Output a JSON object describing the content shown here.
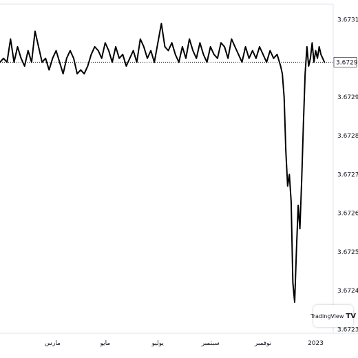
{
  "brand": {
    "name": "TradingView",
    "logo": "TV"
  },
  "chart_data": {
    "type": "line",
    "title": "",
    "xlabel": "",
    "ylabel": "",
    "ylim": [
      3.67229,
      3.67314
    ],
    "y_ticks": [
      "3.67310",
      "3.67290",
      "3.67280",
      "3.67270",
      "3.67260",
      "3.67250",
      "3.67240",
      "3.67230"
    ],
    "y_tick_values": [
      3.6731,
      3.6729,
      3.6728,
      3.6727,
      3.6726,
      3.6725,
      3.6724,
      3.6723
    ],
    "last_price": {
      "label": "3.67299",
      "value": 3.67299
    },
    "x_ticks": [
      "مارس",
      "مايو",
      "يوليو",
      "سبتمبر",
      "نوفمبر",
      "2023"
    ],
    "x_tick_values": [
      0.2,
      0.35,
      0.5,
      0.65,
      0.8,
      0.95
    ],
    "x_range": [
      0.05,
      1.0
    ],
    "grid": false,
    "series": [
      {
        "color": "#000000",
        "x": [
          0.05,
          0.06,
          0.07,
          0.08,
          0.09,
          0.1,
          0.11,
          0.12,
          0.13,
          0.14,
          0.15,
          0.16,
          0.17,
          0.18,
          0.19,
          0.2,
          0.21,
          0.22,
          0.23,
          0.24,
          0.25,
          0.26,
          0.27,
          0.28,
          0.29,
          0.3,
          0.31,
          0.32,
          0.33,
          0.34,
          0.35,
          0.36,
          0.37,
          0.38,
          0.39,
          0.4,
          0.41,
          0.42,
          0.43,
          0.44,
          0.45,
          0.46,
          0.47,
          0.48,
          0.49,
          0.5,
          0.51,
          0.52,
          0.53,
          0.54,
          0.55,
          0.56,
          0.57,
          0.58,
          0.59,
          0.6,
          0.61,
          0.62,
          0.63,
          0.64,
          0.65,
          0.66,
          0.67,
          0.68,
          0.69,
          0.7,
          0.71,
          0.72,
          0.73,
          0.74,
          0.75,
          0.76,
          0.77,
          0.78,
          0.79,
          0.8,
          0.81,
          0.82,
          0.83,
          0.84,
          0.85,
          0.855,
          0.86,
          0.865,
          0.87,
          0.875,
          0.88,
          0.885,
          0.89,
          0.895,
          0.9,
          0.905,
          0.91,
          0.915,
          0.92,
          0.925,
          0.93,
          0.935,
          0.94,
          0.945,
          0.95,
          0.955,
          0.96,
          0.965,
          0.97,
          0.975
        ],
        "y": [
          3.67299,
          3.673,
          3.67299,
          3.67305,
          3.67299,
          3.67303,
          3.673,
          3.67298,
          3.67302,
          3.67299,
          3.67307,
          3.67303,
          3.67299,
          3.673,
          3.67297,
          3.673,
          3.67302,
          3.67299,
          3.67296,
          3.673,
          3.67302,
          3.673,
          3.67296,
          3.67297,
          3.67296,
          3.67298,
          3.67301,
          3.67303,
          3.67302,
          3.673,
          3.67304,
          3.67302,
          3.67299,
          3.67303,
          3.673,
          3.67301,
          3.67298,
          3.673,
          3.67302,
          3.67299,
          3.67305,
          3.67303,
          3.673,
          3.67302,
          3.67299,
          3.67304,
          3.67309,
          3.67303,
          3.67302,
          3.67304,
          3.67301,
          3.67299,
          3.67303,
          3.673,
          3.67305,
          3.67302,
          3.673,
          3.67304,
          3.67301,
          3.67299,
          3.67303,
          3.67301,
          3.673,
          3.67304,
          3.67303,
          3.673,
          3.67305,
          3.67303,
          3.67301,
          3.67299,
          3.67303,
          3.673,
          3.67302,
          3.673,
          3.67303,
          3.67301,
          3.67299,
          3.67302,
          3.673,
          3.67301,
          3.67298,
          3.67296,
          3.6729,
          3.67276,
          3.67267,
          3.6727,
          3.67263,
          3.67242,
          3.67237,
          3.6725,
          3.67262,
          3.67256,
          3.67268,
          3.67283,
          3.67296,
          3.67303,
          3.67298,
          3.673,
          3.67304,
          3.67299,
          3.67302,
          3.673,
          3.67303,
          3.67301,
          3.673,
          3.67299
        ]
      }
    ]
  }
}
